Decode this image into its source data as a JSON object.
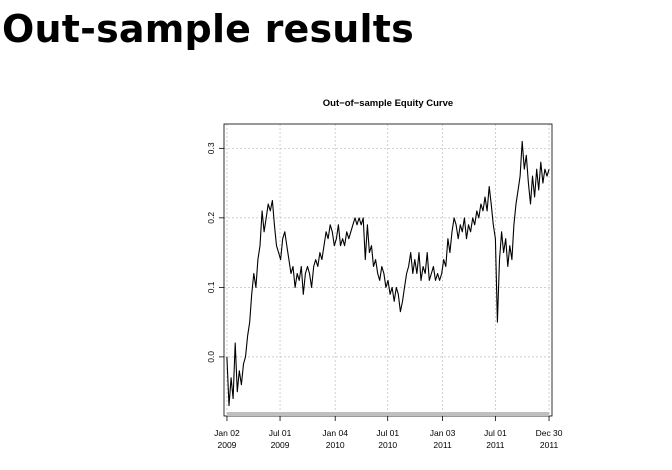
{
  "slide": {
    "title": "Out-sample results"
  },
  "chart_data": {
    "type": "line",
    "title": "Out−of−sample Equity Curve",
    "xlabel": "",
    "ylabel": "",
    "grid": true,
    "x_ticks": [
      {
        "date": "2009-01-02",
        "line1": "Jan 02",
        "line2": "2009"
      },
      {
        "date": "2009-07-01",
        "line1": "Jul 01",
        "line2": "2009"
      },
      {
        "date": "2010-01-04",
        "line1": "Jan 04",
        "line2": "2010"
      },
      {
        "date": "2010-07-01",
        "line1": "Jul 01",
        "line2": "2010"
      },
      {
        "date": "2011-01-03",
        "line1": "Jan 03",
        "line2": "2011"
      },
      {
        "date": "2011-07-01",
        "line1": "Jul 01",
        "line2": "2011"
      },
      {
        "date": "2011-12-30",
        "line1": "Dec 30",
        "line2": "2011"
      }
    ],
    "y_ticks": [
      {
        "value": 0.0,
        "label": "0.0"
      },
      {
        "value": 0.1,
        "label": "0.1"
      },
      {
        "value": 0.2,
        "label": "0.2"
      },
      {
        "value": 0.3,
        "label": "0.3"
      }
    ],
    "xlim": [
      "2008-12-23",
      "2012-01-09"
    ],
    "ylim": [
      -0.085,
      0.335
    ],
    "series": [
      {
        "color": "#000000",
        "points": [
          [
            "2009-01-02",
            0.0
          ],
          [
            "2009-01-09",
            -0.07
          ],
          [
            "2009-01-16",
            -0.03
          ],
          [
            "2009-01-23",
            -0.06
          ],
          [
            "2009-01-30",
            0.02
          ],
          [
            "2009-02-06",
            -0.05
          ],
          [
            "2009-02-13",
            -0.02
          ],
          [
            "2009-02-20",
            -0.04
          ],
          [
            "2009-02-27",
            -0.01
          ],
          [
            "2009-03-06",
            0.0
          ],
          [
            "2009-03-13",
            0.03
          ],
          [
            "2009-03-20",
            0.05
          ],
          [
            "2009-03-27",
            0.09
          ],
          [
            "2009-04-03",
            0.12
          ],
          [
            "2009-04-10",
            0.1
          ],
          [
            "2009-04-17",
            0.14
          ],
          [
            "2009-04-24",
            0.16
          ],
          [
            "2009-05-01",
            0.21
          ],
          [
            "2009-05-08",
            0.18
          ],
          [
            "2009-05-15",
            0.2
          ],
          [
            "2009-05-22",
            0.22
          ],
          [
            "2009-05-29",
            0.21
          ],
          [
            "2009-06-05",
            0.225
          ],
          [
            "2009-06-12",
            0.19
          ],
          [
            "2009-06-19",
            0.16
          ],
          [
            "2009-06-26",
            0.15
          ],
          [
            "2009-07-03",
            0.14
          ],
          [
            "2009-07-10",
            0.17
          ],
          [
            "2009-07-17",
            0.18
          ],
          [
            "2009-07-24",
            0.16
          ],
          [
            "2009-07-31",
            0.14
          ],
          [
            "2009-08-07",
            0.12
          ],
          [
            "2009-08-14",
            0.13
          ],
          [
            "2009-08-21",
            0.1
          ],
          [
            "2009-08-28",
            0.12
          ],
          [
            "2009-09-04",
            0.11
          ],
          [
            "2009-09-11",
            0.13
          ],
          [
            "2009-09-18",
            0.09
          ],
          [
            "2009-09-25",
            0.12
          ],
          [
            "2009-10-02",
            0.13
          ],
          [
            "2009-10-09",
            0.12
          ],
          [
            "2009-10-16",
            0.1
          ],
          [
            "2009-10-23",
            0.13
          ],
          [
            "2009-10-30",
            0.14
          ],
          [
            "2009-11-06",
            0.13
          ],
          [
            "2009-11-13",
            0.15
          ],
          [
            "2009-11-20",
            0.14
          ],
          [
            "2009-11-27",
            0.16
          ],
          [
            "2009-12-04",
            0.18
          ],
          [
            "2009-12-11",
            0.17
          ],
          [
            "2009-12-18",
            0.19
          ],
          [
            "2009-12-25",
            0.18
          ],
          [
            "2010-01-01",
            0.16
          ],
          [
            "2010-01-08",
            0.17
          ],
          [
            "2010-01-15",
            0.19
          ],
          [
            "2010-01-22",
            0.16
          ],
          [
            "2010-01-29",
            0.17
          ],
          [
            "2010-02-05",
            0.16
          ],
          [
            "2010-02-12",
            0.18
          ],
          [
            "2010-02-19",
            0.17
          ],
          [
            "2010-02-26",
            0.18
          ],
          [
            "2010-03-05",
            0.19
          ],
          [
            "2010-03-12",
            0.2
          ],
          [
            "2010-03-19",
            0.19
          ],
          [
            "2010-03-26",
            0.2
          ],
          [
            "2010-04-02",
            0.19
          ],
          [
            "2010-04-09",
            0.2
          ],
          [
            "2010-04-16",
            0.14
          ],
          [
            "2010-04-23",
            0.19
          ],
          [
            "2010-04-30",
            0.15
          ],
          [
            "2010-05-07",
            0.16
          ],
          [
            "2010-05-14",
            0.13
          ],
          [
            "2010-05-21",
            0.14
          ],
          [
            "2010-05-28",
            0.12
          ],
          [
            "2010-06-04",
            0.11
          ],
          [
            "2010-06-11",
            0.13
          ],
          [
            "2010-06-18",
            0.12
          ],
          [
            "2010-06-25",
            0.1
          ],
          [
            "2010-07-02",
            0.11
          ],
          [
            "2010-07-09",
            0.09
          ],
          [
            "2010-07-16",
            0.1
          ],
          [
            "2010-07-23",
            0.08
          ],
          [
            "2010-07-30",
            0.1
          ],
          [
            "2010-08-06",
            0.09
          ],
          [
            "2010-08-13",
            0.065
          ],
          [
            "2010-08-20",
            0.08
          ],
          [
            "2010-08-27",
            0.1
          ],
          [
            "2010-09-03",
            0.12
          ],
          [
            "2010-09-10",
            0.13
          ],
          [
            "2010-09-17",
            0.15
          ],
          [
            "2010-09-24",
            0.12
          ],
          [
            "2010-10-01",
            0.14
          ],
          [
            "2010-10-08",
            0.12
          ],
          [
            "2010-10-15",
            0.15
          ],
          [
            "2010-10-22",
            0.11
          ],
          [
            "2010-10-29",
            0.13
          ],
          [
            "2010-11-05",
            0.12
          ],
          [
            "2010-11-12",
            0.15
          ],
          [
            "2010-11-19",
            0.11
          ],
          [
            "2010-11-26",
            0.12
          ],
          [
            "2010-12-03",
            0.13
          ],
          [
            "2010-12-10",
            0.11
          ],
          [
            "2010-12-17",
            0.12
          ],
          [
            "2010-12-24",
            0.11
          ],
          [
            "2010-12-31",
            0.12
          ],
          [
            "2011-01-07",
            0.14
          ],
          [
            "2011-01-14",
            0.13
          ],
          [
            "2011-01-21",
            0.17
          ],
          [
            "2011-01-28",
            0.15
          ],
          [
            "2011-02-04",
            0.18
          ],
          [
            "2011-02-11",
            0.2
          ],
          [
            "2011-02-18",
            0.19
          ],
          [
            "2011-02-25",
            0.17
          ],
          [
            "2011-03-04",
            0.19
          ],
          [
            "2011-03-11",
            0.18
          ],
          [
            "2011-03-18",
            0.2
          ],
          [
            "2011-03-25",
            0.17
          ],
          [
            "2011-04-01",
            0.19
          ],
          [
            "2011-04-08",
            0.18
          ],
          [
            "2011-04-15",
            0.2
          ],
          [
            "2011-04-22",
            0.19
          ],
          [
            "2011-04-29",
            0.21
          ],
          [
            "2011-05-06",
            0.2
          ],
          [
            "2011-05-13",
            0.22
          ],
          [
            "2011-05-20",
            0.21
          ],
          [
            "2011-05-27",
            0.23
          ],
          [
            "2011-06-03",
            0.21
          ],
          [
            "2011-06-10",
            0.245
          ],
          [
            "2011-06-17",
            0.22
          ],
          [
            "2011-06-24",
            0.19
          ],
          [
            "2011-07-01",
            0.17
          ],
          [
            "2011-07-08",
            0.05
          ],
          [
            "2011-07-15",
            0.14
          ],
          [
            "2011-07-22",
            0.18
          ],
          [
            "2011-07-29",
            0.15
          ],
          [
            "2011-08-05",
            0.17
          ],
          [
            "2011-08-12",
            0.13
          ],
          [
            "2011-08-19",
            0.16
          ],
          [
            "2011-08-26",
            0.14
          ],
          [
            "2011-09-02",
            0.19
          ],
          [
            "2011-09-09",
            0.22
          ],
          [
            "2011-09-16",
            0.24
          ],
          [
            "2011-09-23",
            0.26
          ],
          [
            "2011-09-30",
            0.31
          ],
          [
            "2011-10-07",
            0.27
          ],
          [
            "2011-10-14",
            0.29
          ],
          [
            "2011-10-21",
            0.25
          ],
          [
            "2011-10-28",
            0.22
          ],
          [
            "2011-11-04",
            0.26
          ],
          [
            "2011-11-11",
            0.23
          ],
          [
            "2011-11-18",
            0.27
          ],
          [
            "2011-11-25",
            0.24
          ],
          [
            "2011-12-02",
            0.28
          ],
          [
            "2011-12-09",
            0.25
          ],
          [
            "2011-12-16",
            0.27
          ],
          [
            "2011-12-23",
            0.26
          ],
          [
            "2011-12-30",
            0.27
          ]
        ]
      }
    ]
  }
}
